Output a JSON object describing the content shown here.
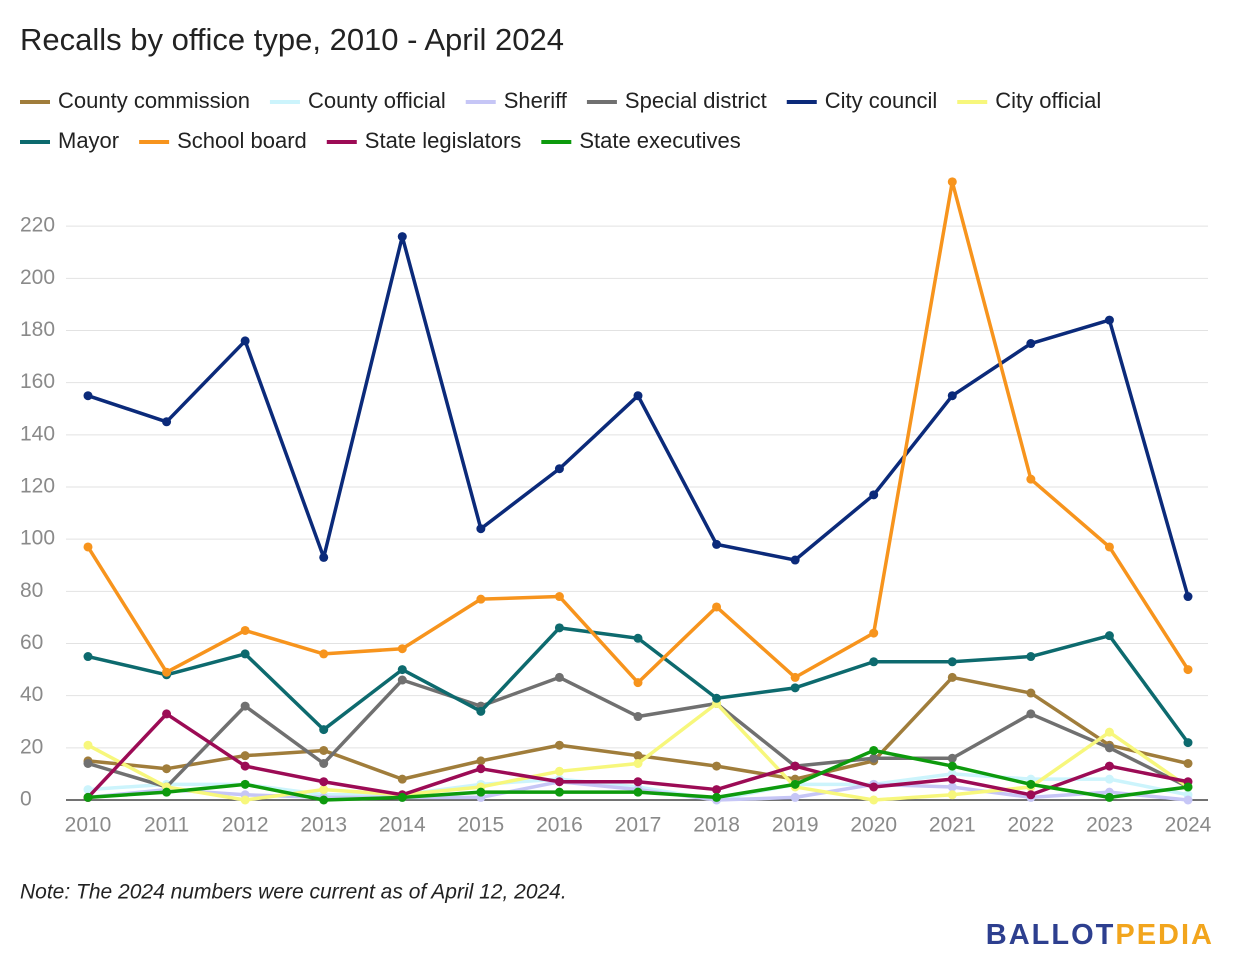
{
  "chart_data": {
    "type": "line",
    "title": "Recalls by office type, 2010 - April 2024",
    "note": "Note: The 2024 numbers were current as of April 12, 2024.",
    "logo": [
      "BALLOT",
      "PEDIA"
    ],
    "x": [
      2010,
      2011,
      2012,
      2013,
      2014,
      2015,
      2016,
      2017,
      2018,
      2019,
      2020,
      2021,
      2022,
      2023,
      2024
    ],
    "xlim": [
      2010,
      2024
    ],
    "ylim": [
      0,
      240
    ],
    "yticks": [
      0,
      20,
      40,
      60,
      80,
      100,
      120,
      140,
      160,
      180,
      200,
      220
    ],
    "grid": true,
    "series": [
      {
        "name": "County commission",
        "color": "#a07d3b",
        "values": [
          15,
          12,
          17,
          19,
          8,
          15,
          21,
          17,
          13,
          8,
          15,
          47,
          41,
          21,
          14
        ]
      },
      {
        "name": "County official",
        "color": "#ccf4fc",
        "values": [
          4,
          6,
          6,
          2,
          2,
          6,
          8,
          5,
          0,
          6,
          6,
          10,
          8,
          8,
          2
        ]
      },
      {
        "name": "Sheriff",
        "color": "#c6c6f6",
        "values": [
          1,
          4,
          2,
          1,
          1,
          1,
          7,
          4,
          0,
          1,
          6,
          5,
          1,
          3,
          0
        ]
      },
      {
        "name": "Special district",
        "color": "#707070",
        "values": [
          14,
          5,
          36,
          14,
          46,
          36,
          47,
          32,
          37,
          13,
          16,
          16,
          33,
          20,
          5
        ]
      },
      {
        "name": "City council",
        "color": "#0b2a7a",
        "values": [
          155,
          145,
          176,
          93,
          216,
          104,
          127,
          155,
          98,
          92,
          117,
          155,
          175,
          184,
          78
        ]
      },
      {
        "name": "City official",
        "color": "#f7f77c",
        "values": [
          21,
          5,
          0,
          4,
          2,
          5,
          11,
          14,
          37,
          5,
          0,
          2,
          5,
          26,
          5
        ]
      },
      {
        "name": "Mayor",
        "color": "#0d6a6e",
        "values": [
          55,
          48,
          56,
          27,
          50,
          34,
          66,
          62,
          39,
          43,
          53,
          53,
          55,
          63,
          22
        ]
      },
      {
        "name": "School board",
        "color": "#f7941d",
        "values": [
          97,
          49,
          65,
          56,
          58,
          77,
          78,
          45,
          74,
          47,
          64,
          237,
          123,
          97,
          50
        ]
      },
      {
        "name": "State legislators",
        "color": "#9c0b55",
        "values": [
          1,
          33,
          13,
          7,
          2,
          12,
          7,
          7,
          4,
          13,
          5,
          8,
          2,
          13,
          7
        ]
      },
      {
        "name": "State executives",
        "color": "#0d9a0d",
        "values": [
          1,
          3,
          6,
          0,
          1,
          3,
          3,
          3,
          1,
          6,
          19,
          13,
          6,
          1,
          5
        ]
      }
    ]
  }
}
